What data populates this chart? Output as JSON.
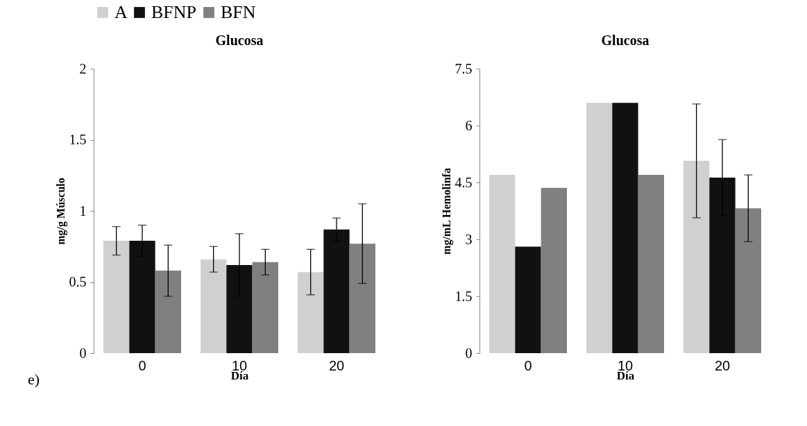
{
  "chart_data": [
    {
      "type": "bar",
      "title": "Glucosa",
      "xlabel": "Día",
      "ylabel": "mg/g Músculo",
      "categories": [
        "0",
        "10",
        "20"
      ],
      "ylim": [
        0,
        2
      ],
      "yticks": [
        0,
        0.5,
        1,
        1.5,
        2
      ],
      "legend": "top",
      "annotations": [
        "e)"
      ],
      "series": [
        {
          "name": "A",
          "color": "#d0d0d0",
          "values": [
            0.79,
            0.66,
            0.57
          ],
          "errors": [
            0.1,
            0.09,
            0.16
          ]
        },
        {
          "name": "BFNP",
          "color": "#111111",
          "values": [
            0.79,
            0.62,
            0.87
          ],
          "errors": [
            0.11,
            0.22,
            0.08
          ]
        },
        {
          "name": "BFN",
          "color": "#808080",
          "values": [
            0.58,
            0.64,
            0.77
          ],
          "errors": [
            0.18,
            0.09,
            0.28
          ]
        }
      ]
    },
    {
      "type": "bar",
      "title": "Glucosa",
      "xlabel": "Día",
      "ylabel": "mg/mL  Hemolinfa",
      "categories": [
        "0",
        "10",
        "20"
      ],
      "ylim": [
        0,
        7.5
      ],
      "yticks": [
        0,
        1.5,
        3,
        4.5,
        6,
        7.5
      ],
      "legend": "top",
      "series": [
        {
          "name": "A",
          "color": "#d0d0d0",
          "values": [
            4.7,
            6.6,
            5.07
          ],
          "errors": [
            null,
            null,
            1.5
          ]
        },
        {
          "name": "BFNP",
          "color": "#111111",
          "values": [
            2.81,
            6.6,
            4.63
          ],
          "errors": [
            null,
            null,
            1.0
          ]
        },
        {
          "name": "BFN",
          "color": "#808080",
          "values": [
            4.36,
            4.7,
            3.82
          ],
          "errors": [
            null,
            null,
            0.88
          ]
        }
      ]
    }
  ]
}
